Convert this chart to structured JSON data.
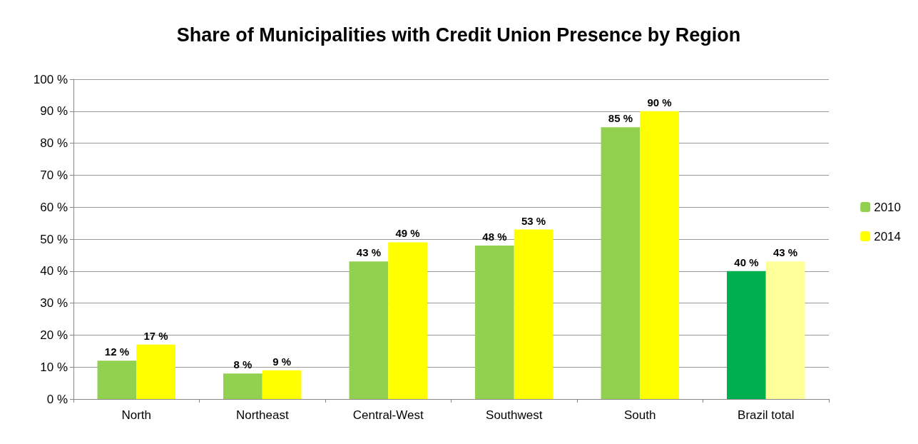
{
  "chart_data": {
    "type": "bar",
    "title": "Share of Municipalities with Credit Union Presence by Region",
    "categories": [
      "North",
      "Northeast",
      "Central-West",
      "Southwest",
      "South",
      "Brazil total"
    ],
    "series": [
      {
        "name": "2010",
        "color": "#92d050",
        "colors": [
          "#92d050",
          "#92d050",
          "#92d050",
          "#92d050",
          "#92d050",
          "#00b050"
        ],
        "values": [
          12,
          8,
          43,
          48,
          85,
          40
        ],
        "value_labels": [
          "12 %",
          "8 %",
          "43 %",
          "48 %",
          "85 %",
          "40 %"
        ]
      },
      {
        "name": "2014",
        "color": "#ffff00",
        "colors": [
          "#ffff00",
          "#ffff00",
          "#ffff00",
          "#ffff00",
          "#ffff00",
          "#ffff99"
        ],
        "values": [
          17,
          9,
          49,
          53,
          90,
          43
        ],
        "value_labels": [
          "17 %",
          "9 %",
          "49 %",
          "53 %",
          "90 %",
          "43 %"
        ]
      }
    ],
    "ylim": [
      0,
      100
    ],
    "yticks": [
      {
        "value": 0,
        "label": "0 %"
      },
      {
        "value": 10,
        "label": "10 %"
      },
      {
        "value": 20,
        "label": "20 %"
      },
      {
        "value": 30,
        "label": "30 %"
      },
      {
        "value": 40,
        "label": "40 %"
      },
      {
        "value": 50,
        "label": "50 %"
      },
      {
        "value": 60,
        "label": "60 %"
      },
      {
        "value": 70,
        "label": "70 %"
      },
      {
        "value": 80,
        "label": "80 %"
      },
      {
        "value": 90,
        "label": "90 %"
      },
      {
        "value": 100,
        "label": "100 %"
      }
    ],
    "grid": "y",
    "legend": "right"
  }
}
